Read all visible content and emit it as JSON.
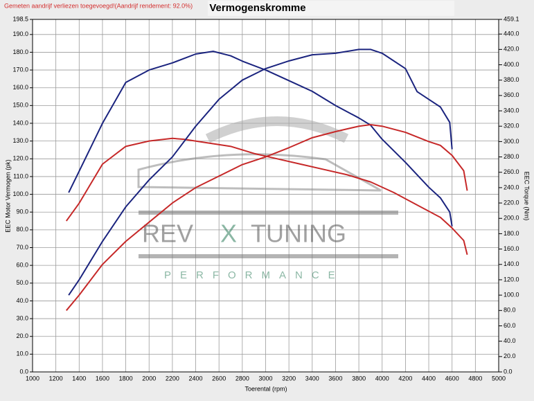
{
  "chart_data": {
    "type": "line",
    "notice": "Gemeten aandrijf verliezen toegevoegd!(Aandrijf rendement: 92.0%)",
    "title": "Vermogenskromme",
    "x_label": "Toerental (rpm)",
    "y_label": "EEC Motor Vermogen (pk)",
    "y2_label": "EEC Torque (Nm)",
    "watermark": {
      "brand_left": "REV",
      "brand_mid": "X",
      "brand_right": "TUNING",
      "tagline": "PERFORMANCE"
    },
    "grid": true,
    "xlim": [
      1000,
      5000
    ],
    "xticks": [
      1000,
      1200,
      1400,
      1600,
      1800,
      2000,
      2200,
      2400,
      2600,
      2800,
      3000,
      3200,
      3400,
      3600,
      3800,
      4000,
      4200,
      4400,
      4600,
      4800,
      5000
    ],
    "ylim": [
      0,
      198.5
    ],
    "yticks": [
      {
        "value": 0,
        "label": "0.0"
      },
      {
        "value": 10,
        "label": "10.0"
      },
      {
        "value": 20,
        "label": "20.0"
      },
      {
        "value": 30,
        "label": "30.0"
      },
      {
        "value": 40,
        "label": "40.0"
      },
      {
        "value": 50,
        "label": "50.0"
      },
      {
        "value": 60,
        "label": "60.0"
      },
      {
        "value": 70,
        "label": "70.0"
      },
      {
        "value": 80,
        "label": "80.0"
      },
      {
        "value": 90,
        "label": "90.0"
      },
      {
        "value": 100,
        "label": "100.0"
      },
      {
        "value": 110,
        "label": "110.0"
      },
      {
        "value": 120,
        "label": "120.0"
      },
      {
        "value": 130,
        "label": "130.0"
      },
      {
        "value": 140,
        "label": "140.0"
      },
      {
        "value": 150,
        "label": "150.0"
      },
      {
        "value": 160,
        "label": "160.0"
      },
      {
        "value": 170,
        "label": "170.0"
      },
      {
        "value": 180,
        "label": "180.0"
      },
      {
        "value": 190,
        "label": "190.0"
      },
      {
        "value": 198.5,
        "label": "198.5"
      }
    ],
    "y2lim": [
      0,
      459.1
    ],
    "y2ticks": [
      {
        "value": 0,
        "label": "0.0"
      },
      {
        "value": 20,
        "label": "20.0"
      },
      {
        "value": 40,
        "label": "40.0"
      },
      {
        "value": 60,
        "label": "60.0"
      },
      {
        "value": 80,
        "label": "80.0"
      },
      {
        "value": 100,
        "label": "100.0"
      },
      {
        "value": 120,
        "label": "120.0"
      },
      {
        "value": 140,
        "label": "140.0"
      },
      {
        "value": 160,
        "label": "160.0"
      },
      {
        "value": 180,
        "label": "180.0"
      },
      {
        "value": 200,
        "label": "200.0"
      },
      {
        "value": 220,
        "label": "220.0"
      },
      {
        "value": 240,
        "label": "240.0"
      },
      {
        "value": 260,
        "label": "260.0"
      },
      {
        "value": 280,
        "label": "280.0"
      },
      {
        "value": 300,
        "label": "300.0"
      },
      {
        "value": 320,
        "label": "320.0"
      },
      {
        "value": 340,
        "label": "340.0"
      },
      {
        "value": 360,
        "label": "360.0"
      },
      {
        "value": 380,
        "label": "380.0"
      },
      {
        "value": 400,
        "label": "400.0"
      },
      {
        "value": 420,
        "label": "420.0"
      },
      {
        "value": 440,
        "label": "440.0"
      },
      {
        "value": 459.1,
        "label": "459.1"
      }
    ],
    "series": [
      {
        "color": "#1a237e",
        "axis": "y",
        "x": [
          1310,
          1400,
          1600,
          1800,
          2000,
          2200,
          2400,
          2550,
          2700,
          2800,
          3000,
          3200,
          3400,
          3600,
          3800,
          3900,
          4000,
          4200,
          4400,
          4500,
          4580,
          4600
        ],
        "values": [
          101,
          113,
          140,
          163,
          170,
          174,
          179,
          180.5,
          178,
          175,
          170,
          164,
          158,
          150,
          143,
          139,
          131,
          118,
          104,
          98,
          90,
          82
        ]
      },
      {
        "color": "#c62828",
        "axis": "y",
        "x": [
          1290,
          1400,
          1600,
          1800,
          2000,
          2200,
          2300,
          2500,
          2700,
          2900,
          3100,
          3300,
          3500,
          3700,
          3900,
          4100,
          4300,
          4500,
          4600,
          4700,
          4730
        ],
        "values": [
          85,
          95,
          117,
          127,
          130,
          131.5,
          131,
          129,
          127,
          123,
          120,
          117,
          114,
          111,
          107,
          101,
          94,
          87,
          81,
          74,
          66
        ]
      },
      {
        "color": "#1a237e",
        "axis": "y2",
        "x": [
          1310,
          1400,
          1600,
          1800,
          2000,
          2200,
          2400,
          2600,
          2800,
          3000,
          3200,
          3400,
          3600,
          3800,
          3900,
          4000,
          4200,
          4300,
          4400,
          4500,
          4580,
          4600
        ],
        "values": [
          100,
          120,
          170,
          215,
          250,
          280,
          320,
          355,
          380,
          395,
          405,
          413,
          415,
          420,
          420,
          415,
          395,
          365,
          355,
          345,
          325,
          290
        ]
      },
      {
        "color": "#c62828",
        "axis": "y2",
        "x": [
          1290,
          1400,
          1600,
          1800,
          2000,
          2200,
          2400,
          2600,
          2800,
          3000,
          3200,
          3400,
          3600,
          3800,
          3900,
          4000,
          4200,
          4400,
          4500,
          4600,
          4700,
          4730
        ],
        "values": [
          80,
          100,
          140,
          170,
          195,
          220,
          240,
          255,
          270,
          280,
          292,
          305,
          313,
          320,
          322,
          320,
          312,
          300,
          295,
          282,
          262,
          236
        ]
      }
    ]
  }
}
